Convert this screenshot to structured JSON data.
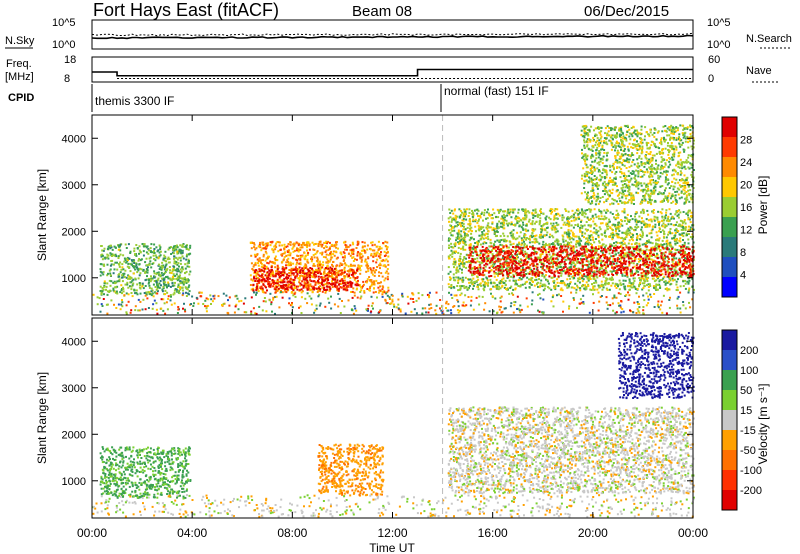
{
  "header": {
    "station": "Fort Hays East (fitACF)",
    "beam": "Beam 08",
    "date": "06/Dec/2015"
  },
  "top_panel": {
    "left_label": "N.Sky",
    "right_label": "N.Search",
    "left_ticks": [
      "10^5",
      "10^0"
    ],
    "right_ticks": [
      "10^5",
      "10^0"
    ]
  },
  "freq_panel": {
    "left_label_1": "Freq.",
    "left_label_2": "[MHz]",
    "right_label": "Nave",
    "left_ticks": [
      "18",
      "8"
    ],
    "right_ticks": [
      "60",
      "0"
    ]
  },
  "cpid": {
    "label": "CPID",
    "mode1": "themis 3300 IF",
    "mode2": "normal (fast) 151 IF"
  },
  "power_panel": {
    "ylabel": "Slant Range [km]",
    "yticks": [
      "4000",
      "3000",
      "2000",
      "1000"
    ],
    "colorbar_label": "Power [dB]",
    "colorbar_ticks": [
      "28",
      "24",
      "20",
      "16",
      "12",
      "8",
      "4"
    ],
    "colors": [
      "#e00000",
      "#ff3a00",
      "#ff8a00",
      "#ffc800",
      "#9acd32",
      "#3aa050",
      "#2a7a7a",
      "#1f4fbf",
      "#0000ff"
    ]
  },
  "velocity_panel": {
    "ylabel": "Slant Range [km]",
    "yticks": [
      "4000",
      "3000",
      "2000",
      "1000"
    ],
    "colorbar_label": "Velocity [m s⁻¹]",
    "colorbar_ticks": [
      "200",
      "100",
      "50",
      "15",
      "-15",
      "-50",
      "-100",
      "-200"
    ],
    "colors": [
      "#1a1aa0",
      "#2a50c8",
      "#3aa050",
      "#7ad030",
      "#c8c8c8",
      "#ffa000",
      "#ff7000",
      "#ff3000",
      "#e00000"
    ]
  },
  "xaxis": {
    "label": "Time UT",
    "ticks": [
      "00:00",
      "04:00",
      "08:00",
      "12:00",
      "16:00",
      "20:00",
      "00:00"
    ]
  },
  "chart_data": {
    "type": "heatmap",
    "title": "Fort Hays East (fitACF)",
    "subtitle": "Beam 08",
    "xlabel": "Time UT",
    "ylabel": "Slant Range [km]",
    "xlim_hours": [
      0,
      24
    ],
    "ylim": [
      200,
      4500
    ],
    "cpid_segments": [
      {
        "label": "themis 3300 IF",
        "start_hour": 0,
        "end_hour": 14
      },
      {
        "label": "normal (fast) 151 IF",
        "start_hour": 14,
        "end_hour": 24
      }
    ],
    "freq_mhz": [
      {
        "start_hour": 0,
        "end_hour": 1,
        "value": 12
      },
      {
        "start_hour": 1,
        "end_hour": 13,
        "value": 10.5
      },
      {
        "start_hour": 13,
        "end_hour": 24,
        "value": 13
      }
    ],
    "power_regions": [
      {
        "t0": 0.3,
        "t1": 3.9,
        "r0": 650,
        "r1": 1750,
        "db": 12
      },
      {
        "t0": 6.3,
        "t1": 11.8,
        "r0": 700,
        "r1": 1800,
        "db": 20
      },
      {
        "t0": 6.4,
        "t1": 10.6,
        "r0": 750,
        "r1": 1250,
        "db": 28
      },
      {
        "t0": 14.2,
        "t1": 24.0,
        "r0": 750,
        "r1": 2500,
        "db": 14
      },
      {
        "t0": 15.0,
        "t1": 24.0,
        "r0": 1050,
        "r1": 1700,
        "db": 28
      },
      {
        "t0": 19.5,
        "t1": 24.0,
        "r0": 2600,
        "r1": 4300,
        "db": 14
      }
    ],
    "velocity_regions": [
      {
        "t0": 0.3,
        "t1": 3.9,
        "r0": 650,
        "r1": 1750,
        "vel": 40
      },
      {
        "t0": 9.0,
        "t1": 11.6,
        "r0": 700,
        "r1": 1800,
        "vel": -40
      },
      {
        "t0": 14.2,
        "t1": 24.0,
        "r0": 750,
        "r1": 2600,
        "vel": 0
      },
      {
        "t0": 21.0,
        "t1": 24.0,
        "r0": 2800,
        "r1": 4200,
        "vel": 200
      }
    ]
  }
}
